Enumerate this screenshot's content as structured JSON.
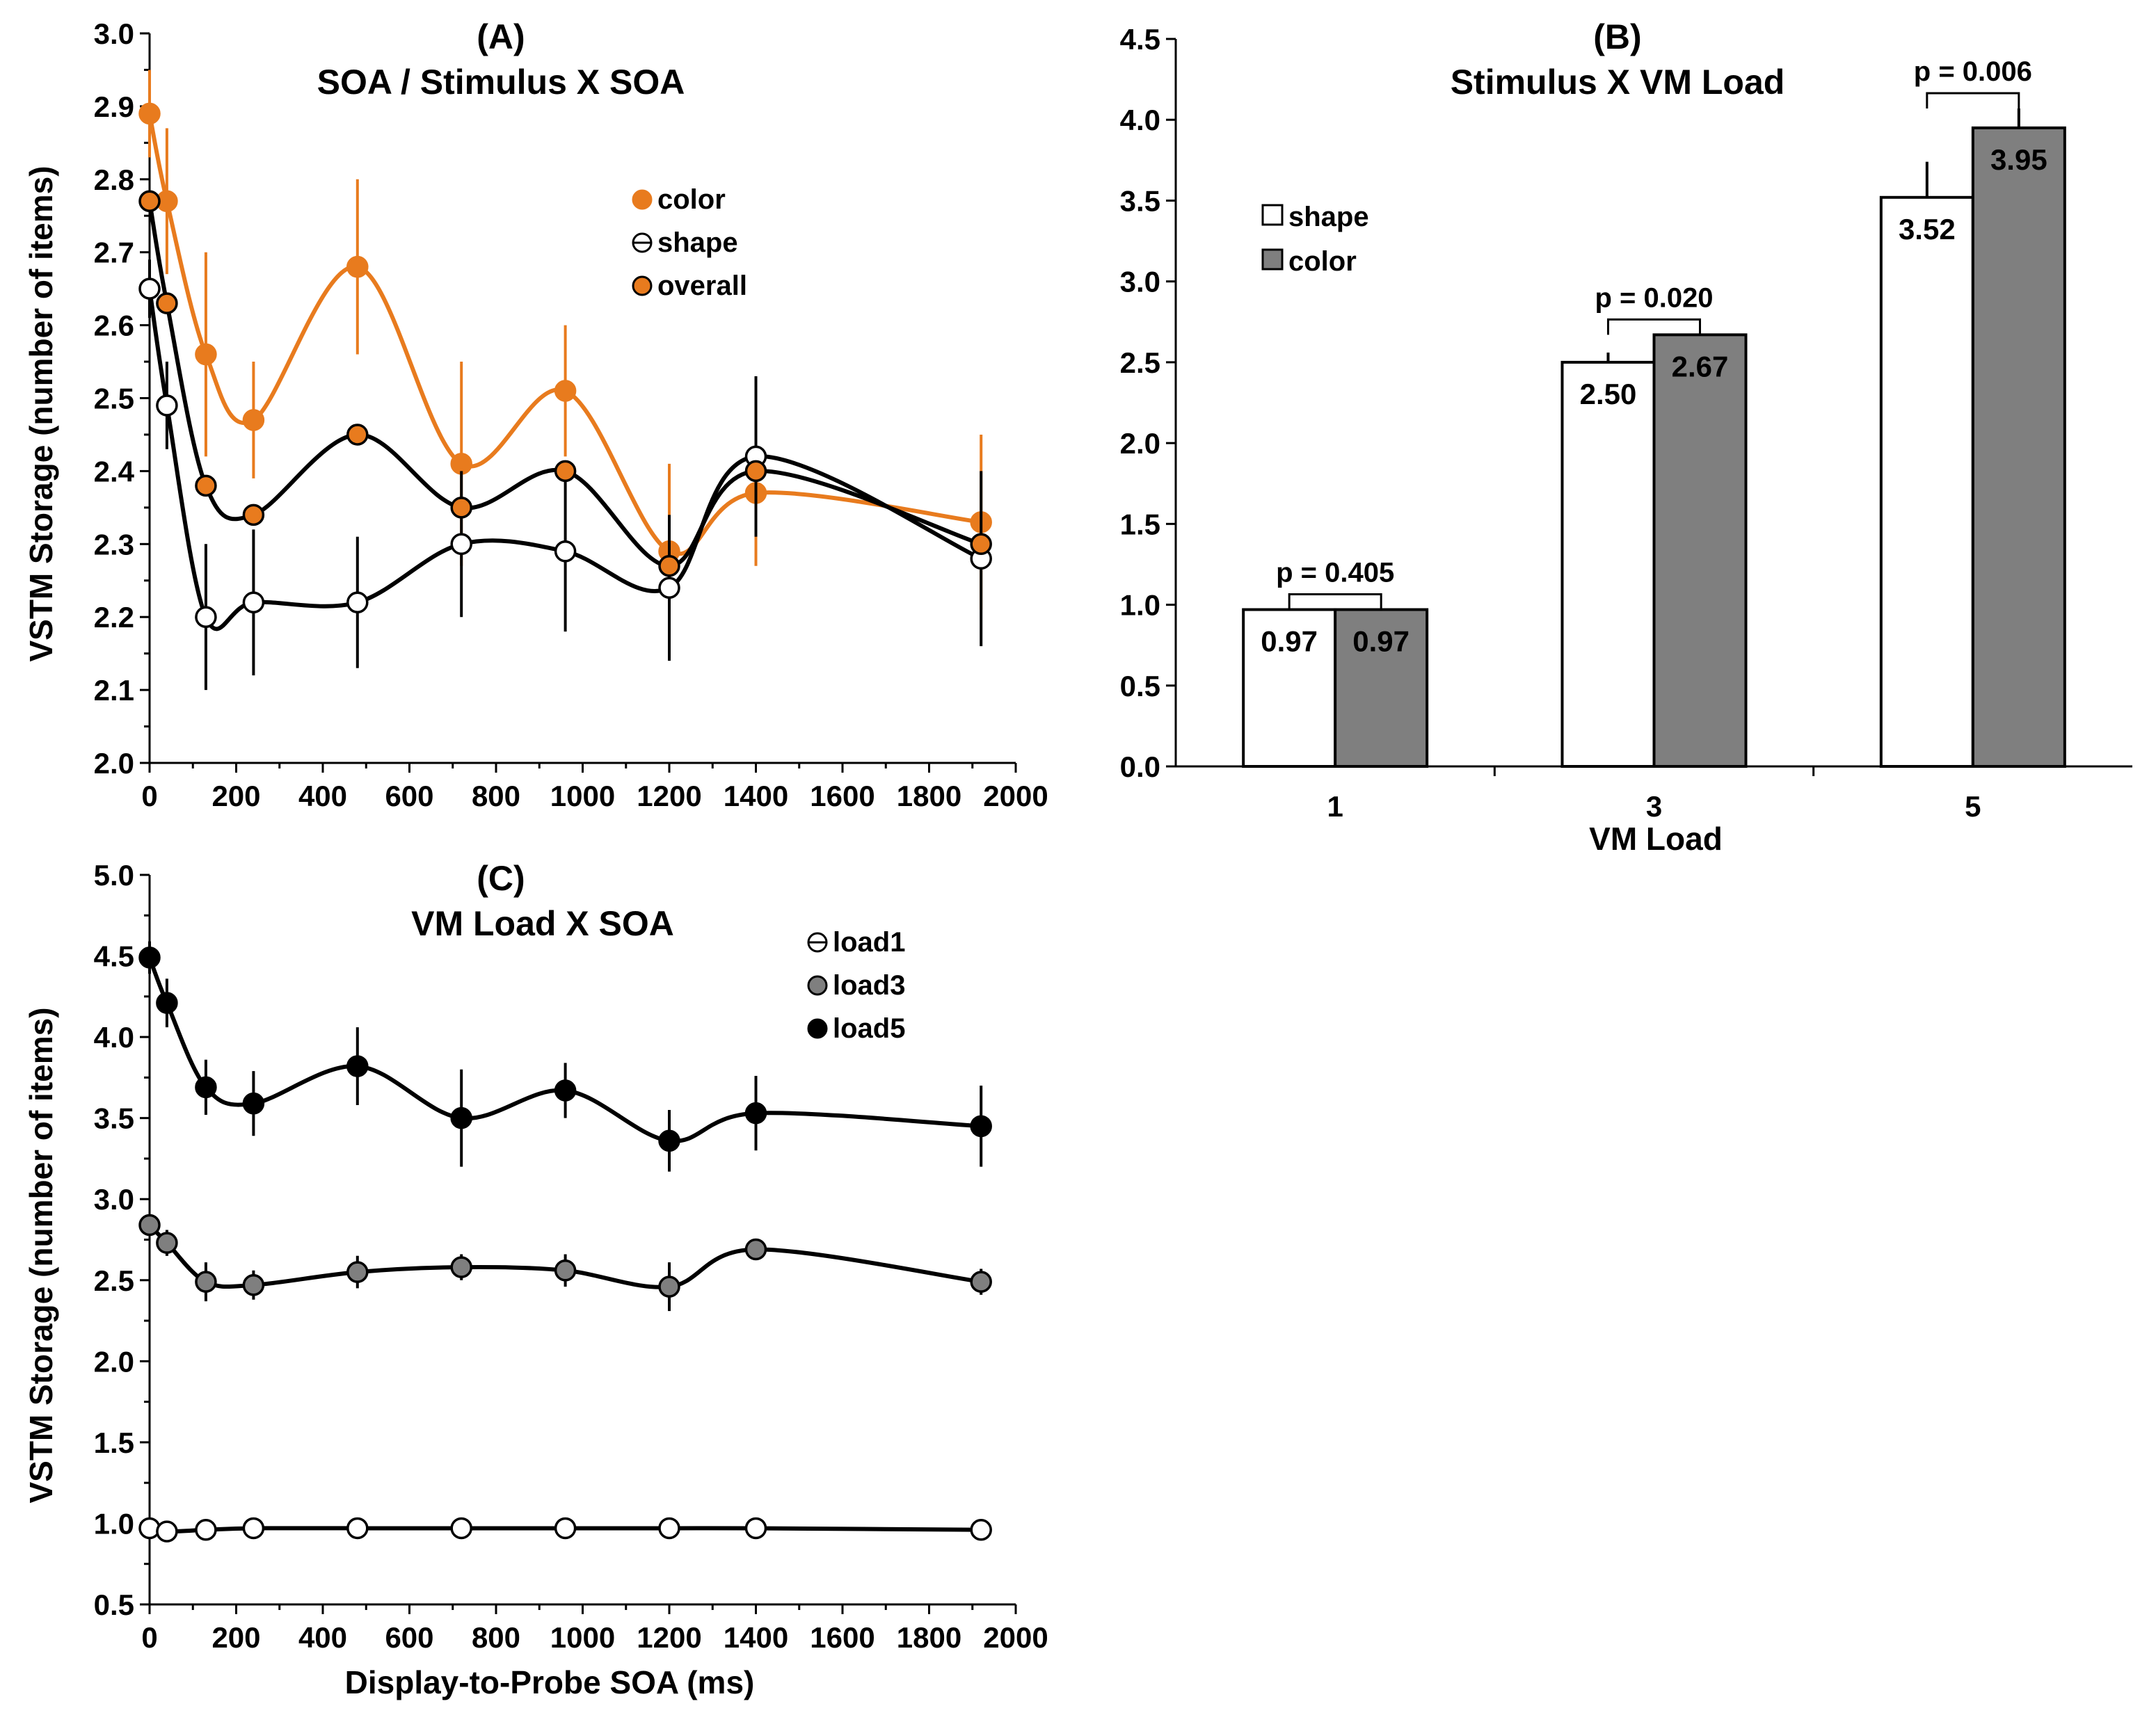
{
  "chart_data": [
    {
      "id": "A",
      "type": "line",
      "title": "(A)",
      "subtitle": "SOA / Stimulus X SOA",
      "xlabel": "",
      "ylabel": "VSTM Storage (number of items)",
      "xlim": [
        0,
        2000
      ],
      "ylim": [
        2.0,
        3.0
      ],
      "xticks": [
        "0",
        "200",
        "400",
        "600",
        "800",
        "1000",
        "1200",
        "1400",
        "1600",
        "1800",
        "2000"
      ],
      "yticks": [
        "2.0",
        "2.1",
        "2.2",
        "2.3",
        "2.4",
        "2.5",
        "2.6",
        "2.7",
        "2.8",
        "2.9",
        "3.0"
      ],
      "legend_position": "top-right",
      "x": [
        0,
        40,
        130,
        240,
        480,
        720,
        960,
        1200,
        1400,
        1920
      ],
      "series": [
        {
          "name": "color",
          "color": "#e87b1e",
          "marker": "orange-filled",
          "values": [
            2.89,
            2.77,
            2.56,
            2.47,
            2.68,
            2.41,
            2.51,
            2.29,
            2.37,
            2.33
          ],
          "errors": [
            0.06,
            0.1,
            0.14,
            0.08,
            0.12,
            0.14,
            0.09,
            0.12,
            0.1,
            0.12
          ]
        },
        {
          "name": "shape",
          "color": "#000000",
          "marker": "open",
          "values": [
            2.65,
            2.49,
            2.2,
            2.22,
            2.22,
            2.3,
            2.29,
            2.24,
            2.42,
            2.28
          ],
          "errors": [
            0.04,
            0.06,
            0.1,
            0.1,
            0.09,
            0.1,
            0.11,
            0.1,
            0.11,
            0.12
          ]
        },
        {
          "name": "overall",
          "color": "#000000",
          "marker": "orange-filled-black-edge",
          "values": [
            2.77,
            2.63,
            2.38,
            2.34,
            2.45,
            2.35,
            2.4,
            2.27,
            2.4,
            2.3
          ],
          "errors": [
            0,
            0,
            0,
            0,
            0,
            0,
            0,
            0,
            0,
            0
          ]
        }
      ]
    },
    {
      "id": "B",
      "type": "bar",
      "title": "(B)",
      "subtitle": "Stimulus X VM Load",
      "xlabel": "VM Load",
      "ylabel": "",
      "ylim": [
        0.0,
        4.5
      ],
      "yticks": [
        "0.0",
        "0.5",
        "1.0",
        "1.5",
        "2.0",
        "2.5",
        "3.0",
        "3.5",
        "4.0",
        "4.5"
      ],
      "categories": [
        "1",
        "3",
        "5"
      ],
      "legend_position": "upper-left",
      "series": [
        {
          "name": "shape",
          "color": "#ffffff",
          "values": [
            0.97,
            2.5,
            3.52
          ],
          "labels": [
            "0.97",
            "2.50",
            "3.52"
          ],
          "errors": [
            0.0,
            0.06,
            0.22
          ]
        },
        {
          "name": "color",
          "color": "#7f7f7f",
          "values": [
            0.97,
            2.67,
            3.95
          ],
          "labels": [
            "0.97",
            "2.67",
            "3.95"
          ],
          "errors": [
            0.0,
            0.0,
            0.12
          ]
        }
      ],
      "annotations": [
        "p = 0.405",
        "p = 0.020",
        "p = 0.006"
      ]
    },
    {
      "id": "C",
      "type": "line",
      "title": "(C)",
      "subtitle": "VM Load X SOA",
      "xlabel": "Display-to-Probe SOA (ms)",
      "ylabel": "VSTM Storage (number of items)",
      "xlim": [
        0,
        2000
      ],
      "ylim": [
        0.5,
        5.0
      ],
      "xticks": [
        "0",
        "200",
        "400",
        "600",
        "800",
        "1000",
        "1200",
        "1400",
        "1600",
        "1800",
        "2000"
      ],
      "yticks": [
        "0.5",
        "1.0",
        "1.5",
        "2.0",
        "2.5",
        "3.0",
        "3.5",
        "4.0",
        "4.5",
        "5.0"
      ],
      "legend_position": "top-right",
      "x": [
        0,
        40,
        130,
        240,
        480,
        720,
        960,
        1200,
        1400,
        1920
      ],
      "series": [
        {
          "name": "load1",
          "color": "#ffffff",
          "values": [
            0.97,
            0.95,
            0.96,
            0.97,
            0.97,
            0.97,
            0.97,
            0.97,
            0.97,
            0.96
          ],
          "errors": [
            0,
            0,
            0,
            0,
            0,
            0,
            0,
            0,
            0,
            0
          ]
        },
        {
          "name": "load3",
          "color": "#7f7f7f",
          "values": [
            2.84,
            2.73,
            2.49,
            2.47,
            2.55,
            2.58,
            2.56,
            2.46,
            2.69,
            2.49
          ],
          "errors": [
            0.05,
            0.08,
            0.12,
            0.09,
            0.1,
            0.08,
            0.1,
            0.15,
            0.06,
            0.08
          ]
        },
        {
          "name": "load5",
          "color": "#000000",
          "values": [
            4.49,
            4.21,
            3.69,
            3.59,
            3.82,
            3.5,
            3.67,
            3.36,
            3.53,
            3.45
          ],
          "errors": [
            0.1,
            0.15,
            0.17,
            0.2,
            0.24,
            0.3,
            0.17,
            0.19,
            0.23,
            0.25
          ]
        }
      ]
    }
  ]
}
